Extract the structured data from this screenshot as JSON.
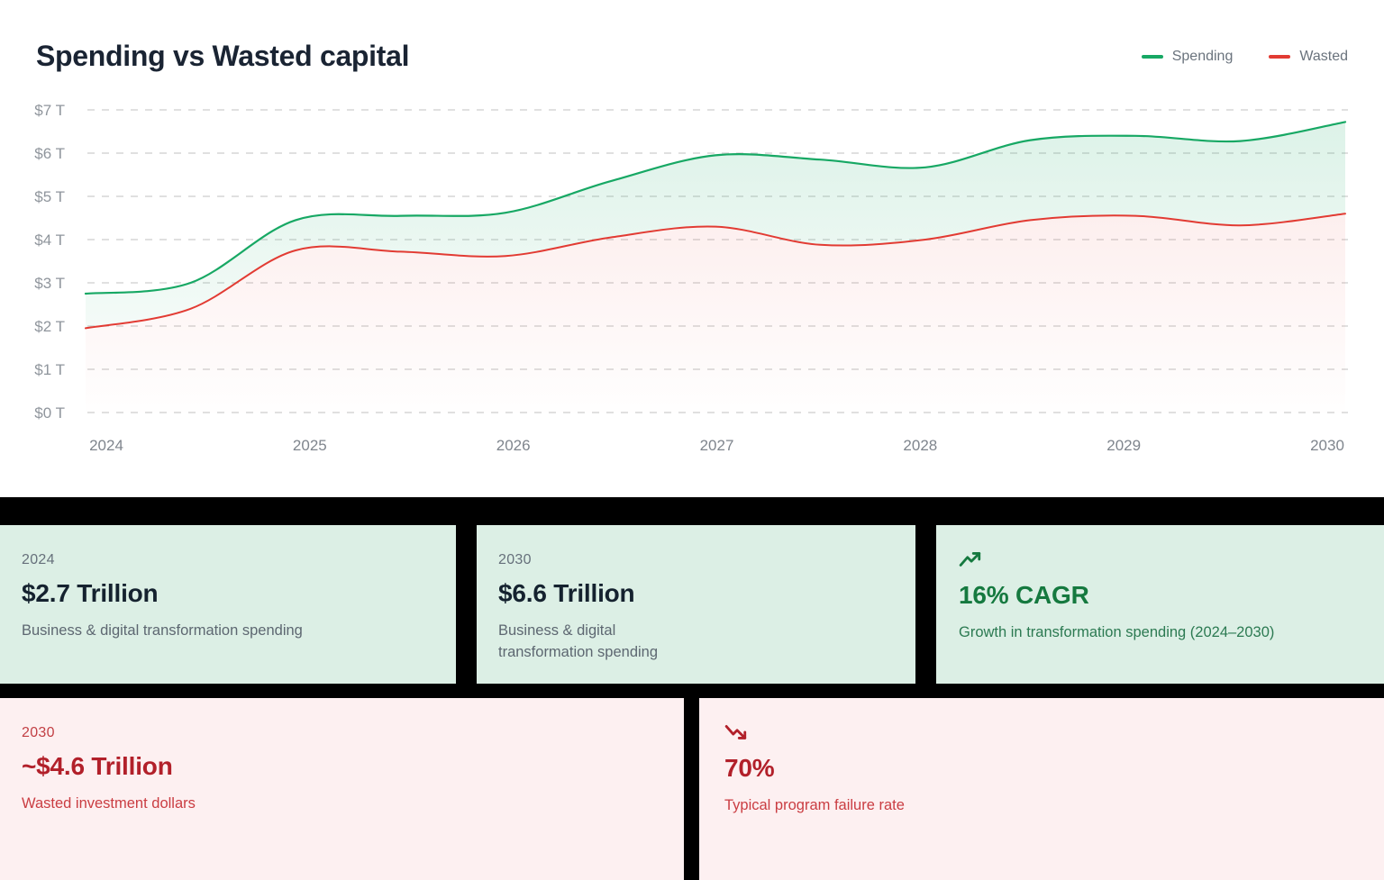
{
  "chart": {
    "title": "Spending vs Wasted capital",
    "legend": [
      {
        "label": "Spending",
        "color": "#17a864"
      },
      {
        "label": "Wasted",
        "color": "#e23b33"
      }
    ]
  },
  "chart_data": {
    "type": "area",
    "title": "Spending vs Wasted capital",
    "unit": "trillions of USD",
    "grid": "horizontal dashed",
    "legend_position": "top-right",
    "ylim": [
      0,
      7
    ],
    "y_tick_labels": [
      "$0 T",
      "$1 T",
      "$2 T",
      "$3 T",
      "$4 T",
      "$5 T",
      "$6 T",
      "$7 T"
    ],
    "x_label_years": [
      "2024",
      "2025",
      "2026",
      "2027",
      "2028",
      "2029",
      "2030"
    ],
    "x": [
      2024,
      2024.5,
      2025,
      2025.5,
      2026,
      2026.5,
      2027,
      2027.5,
      2028,
      2028.5,
      2029,
      2029.5,
      2030
    ],
    "series": [
      {
        "name": "Spending",
        "color": "#17a864",
        "values": [
          2.75,
          3.0,
          4.45,
          4.55,
          4.62,
          5.35,
          5.95,
          5.85,
          5.67,
          6.3,
          6.4,
          6.28,
          6.72
        ]
      },
      {
        "name": "Wasted",
        "color": "#e23b33",
        "values": [
          1.95,
          2.4,
          3.75,
          3.72,
          3.62,
          4.05,
          4.3,
          3.88,
          4.0,
          4.45,
          4.55,
          4.33,
          4.6
        ]
      }
    ],
    "key_points": {
      "spending_2024_trillion": 2.7,
      "spending_2030_trillion": 6.6,
      "wasted_2030_trillion": 4.6
    }
  },
  "stat_cards": {
    "green": [
      {
        "label": "2024",
        "value": "$2.7 Trillion",
        "desc": "Business & digital transformation spending"
      },
      {
        "label": "2030",
        "value": "$6.6 Trillion",
        "desc": "Business & digital transformation spending"
      },
      {
        "icon": "trending-up-icon",
        "value": "16% CAGR",
        "desc": "Growth in transformation spending (2024–2030)"
      }
    ],
    "red": [
      {
        "label": "2030",
        "value": "~$4.6 Trillion",
        "desc": "Wasted investment dollars"
      },
      {
        "icon": "trending-down-icon",
        "value": "70%",
        "desc": "Typical program failure rate"
      }
    ]
  },
  "colors": {
    "spending_green": "#17a864",
    "wasted_red": "#e23b33",
    "card_green_bg": "#dcefe5",
    "card_red_bg": "#fdf0f1",
    "cagr_green_text": "#15793f",
    "failure_red_text": "#b2202a",
    "title_navy": "#1a2433",
    "gridline_gray": "#d6d6d6",
    "background_black": "#000000"
  }
}
